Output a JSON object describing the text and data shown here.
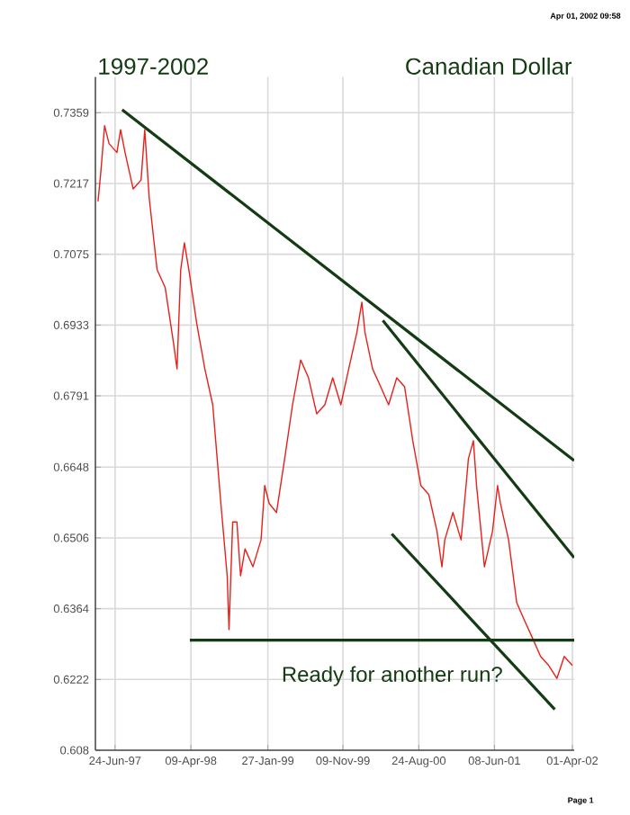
{
  "chart_data": {
    "type": "line",
    "title": "Canadian Dollar",
    "subtitle": "1997-2002",
    "annotations": [
      "Ready for another run?",
      "Apr 01, 2002 09:58",
      "Page 1"
    ],
    "x": [
      "1997-04-20",
      "1997-05-01",
      "1997-05-15",
      "1997-06-01",
      "1997-07-01",
      "1997-07-15",
      "1997-08-01",
      "1997-09-01",
      "1997-10-01",
      "1997-10-15",
      "1997-11-01",
      "1997-12-01",
      "1998-01-01",
      "1998-02-01",
      "1998-02-15",
      "1998-03-01",
      "1998-03-15",
      "1998-04-01",
      "1998-05-01",
      "1998-06-01",
      "1998-07-01",
      "1998-08-01",
      "1998-08-25",
      "1998-09-01",
      "1998-09-15",
      "1998-10-01",
      "1998-10-15",
      "1998-11-01",
      "1998-12-01",
      "1999-01-01",
      "1999-01-15",
      "1999-02-01",
      "1999-03-01",
      "1999-04-01",
      "1999-05-01",
      "1999-06-01",
      "1999-07-01",
      "1999-08-01",
      "1999-09-01",
      "1999-10-01",
      "1999-11-01",
      "1999-12-01",
      "2000-01-01",
      "2000-01-20",
      "2000-02-01",
      "2000-03-01",
      "2000-04-01",
      "2000-05-01",
      "2000-06-01",
      "2000-07-01",
      "2000-08-01",
      "2000-09-01",
      "2000-10-01",
      "2000-11-01",
      "2000-11-20",
      "2000-12-01",
      "2001-01-01",
      "2001-02-01",
      "2001-02-20",
      "2001-03-01",
      "2001-03-20",
      "2001-04-01",
      "2001-05-01",
      "2001-06-01",
      "2001-06-20",
      "2001-07-01",
      "2001-08-01",
      "2001-09-01",
      "2001-10-01",
      "2001-11-01",
      "2001-12-01",
      "2002-01-01",
      "2002-02-01",
      "2002-03-01",
      "2002-04-01"
    ],
    "series": [
      {
        "color": "#e8201a",
        "values": [
          0.7181,
          0.7242,
          0.7333,
          0.7297,
          0.7279,
          0.7325,
          0.7279,
          0.7206,
          0.7224,
          0.7325,
          0.7188,
          0.7044,
          0.7008,
          0.6899,
          0.6845,
          0.7044,
          0.7098,
          0.7044,
          0.6936,
          0.6845,
          0.6773,
          0.6575,
          0.643,
          0.6322,
          0.6538,
          0.6538,
          0.643,
          0.6484,
          0.6448,
          0.6502,
          0.6611,
          0.6575,
          0.6557,
          0.6665,
          0.6773,
          0.6863,
          0.6827,
          0.6755,
          0.6773,
          0.6827,
          0.6773,
          0.6845,
          0.6918,
          0.6979,
          0.6918,
          0.6845,
          0.6809,
          0.6773,
          0.6827,
          0.6809,
          0.6701,
          0.6611,
          0.6593,
          0.652,
          0.6448,
          0.6502,
          0.6557,
          0.6502,
          0.6611,
          0.6665,
          0.6701,
          0.6611,
          0.6448,
          0.652,
          0.6611,
          0.6575,
          0.6502,
          0.6376,
          0.634,
          0.6304,
          0.6268,
          0.625,
          0.6224,
          0.6268,
          0.625
        ]
      },
      {
        "type": "line",
        "color": "#143c14",
        "x": [
          "1997-07-21",
          "2002-04-08"
        ],
        "values": [
          0.7365,
          0.6661
        ]
      },
      {
        "type": "line",
        "color": "#143c14",
        "x": [
          "2000-04-09",
          "2002-04-08"
        ],
        "values": [
          0.6942,
          0.6466
        ]
      },
      {
        "type": "line",
        "color": "#143c14",
        "x": [
          "2000-05-13",
          "2002-01-24"
        ],
        "values": [
          0.6514,
          0.6162
        ]
      },
      {
        "type": "line",
        "color": "#143c14",
        "x": [
          "1998-04-05",
          "2002-04-08"
        ],
        "values": [
          0.6301,
          0.6301
        ]
      }
    ],
    "xlim": [
      "1997-04-10",
      "2002-04-08"
    ],
    "xticks": [
      {
        "value": "1997-06-24",
        "label": "24-Jun-97"
      },
      {
        "value": "1998-04-09",
        "label": "09-Apr-98"
      },
      {
        "value": "1999-01-27",
        "label": "27-Jan-99"
      },
      {
        "value": "1999-11-09",
        "label": "09-Nov-99"
      },
      {
        "value": "2000-08-24",
        "label": "24-Aug-00"
      },
      {
        "value": "2001-06-08",
        "label": "08-Jun-01"
      },
      {
        "value": "2002-04-01",
        "label": "01-Apr-02"
      }
    ],
    "ylim": [
      0.608,
      0.7431
    ],
    "yticks": [
      0.608,
      0.6222,
      0.6364,
      0.6506,
      0.6648,
      0.6791,
      0.6933,
      0.7075,
      0.7217,
      0.7359
    ],
    "grid": true,
    "marker": "none",
    "line_style": "solid"
  }
}
